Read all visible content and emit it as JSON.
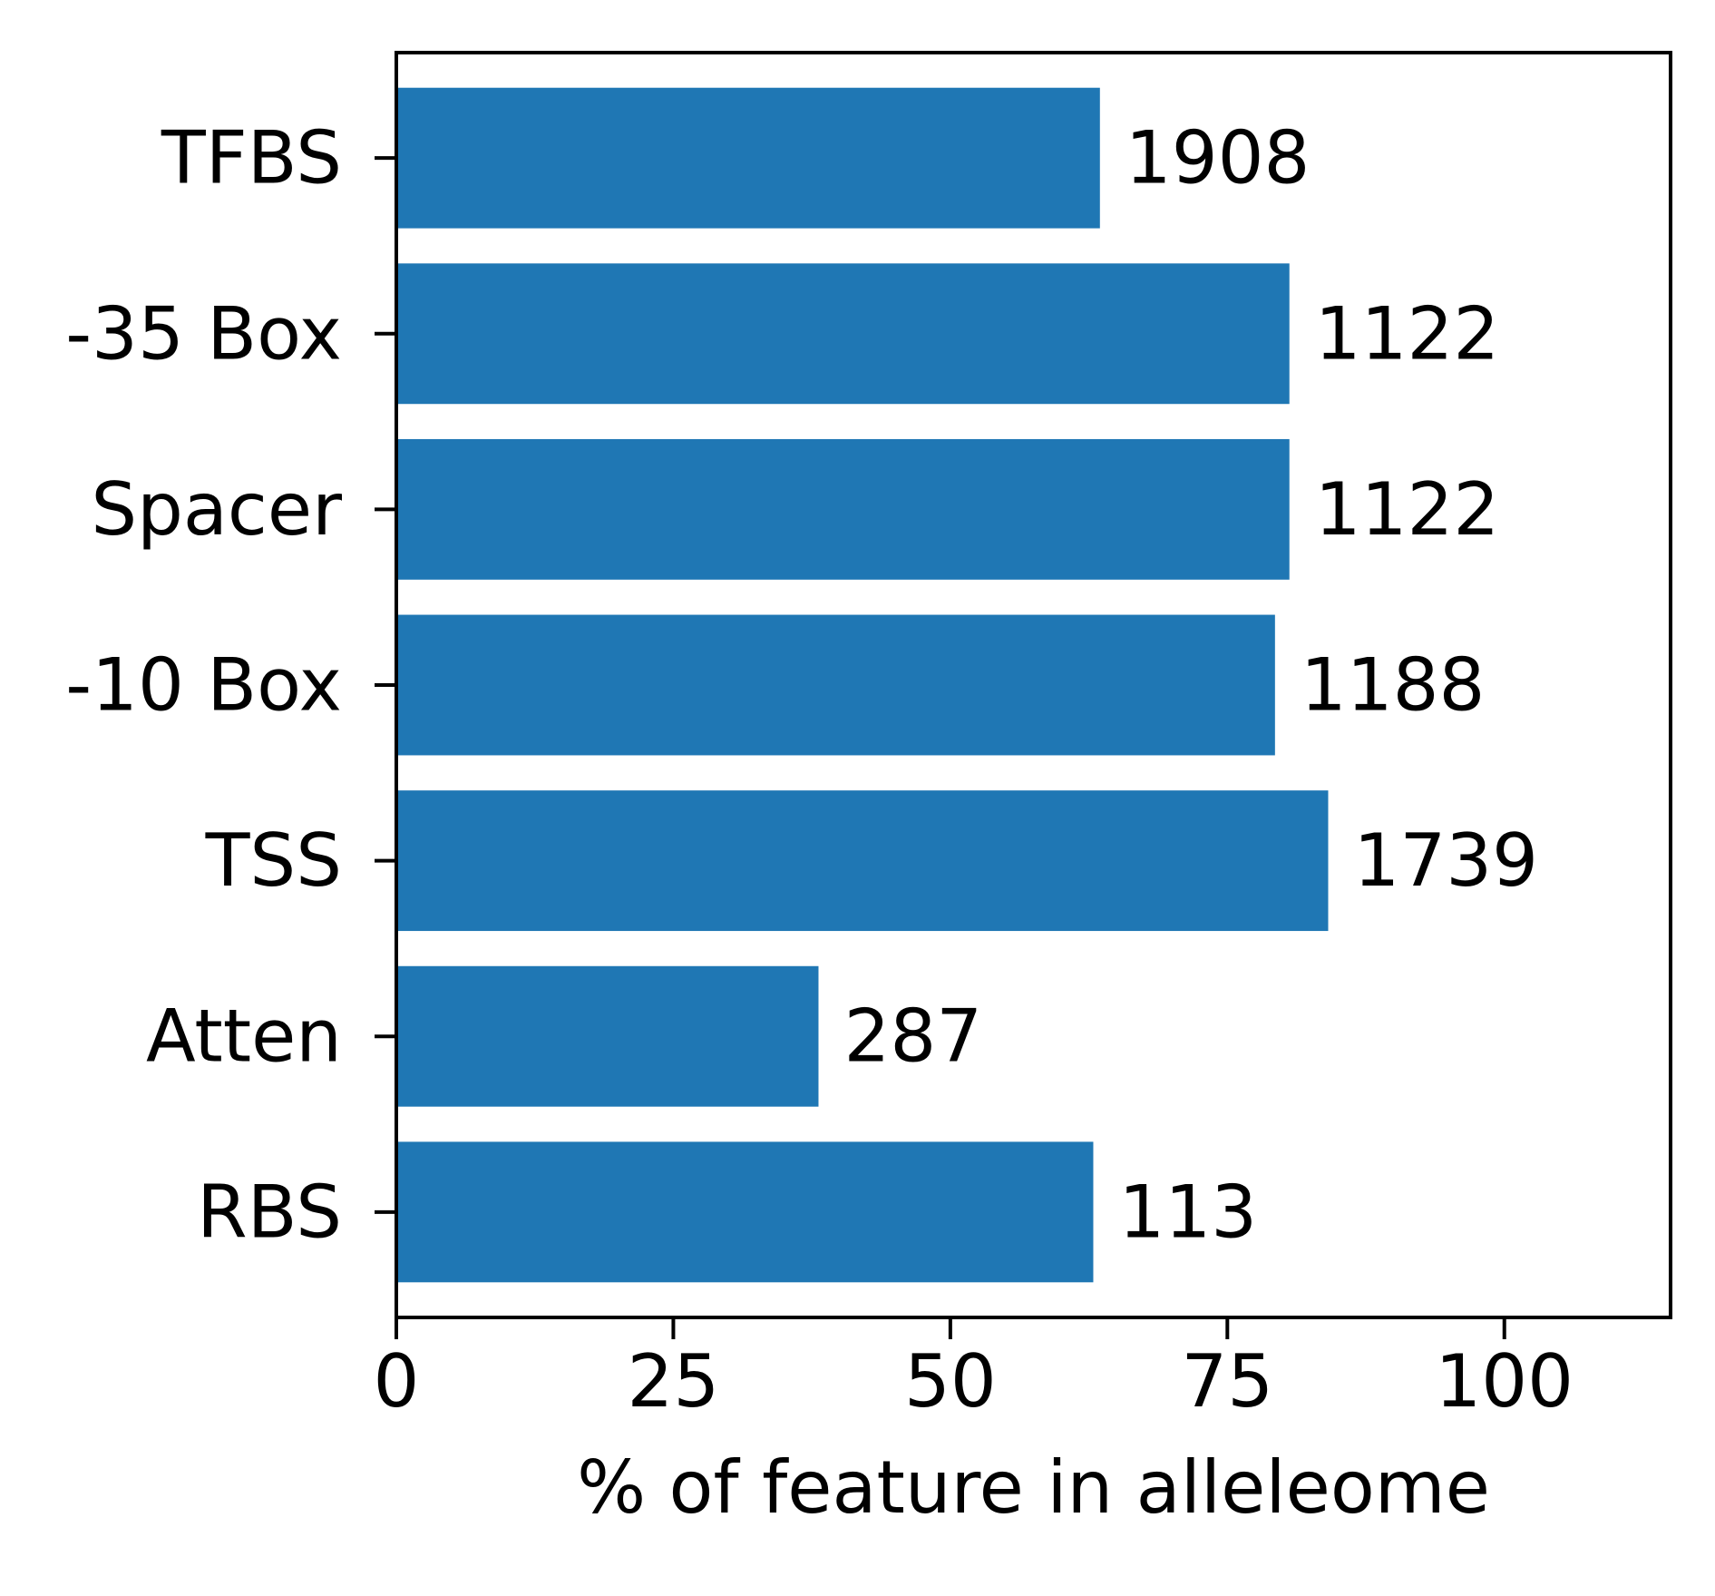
{
  "chart_data": {
    "type": "bar",
    "orientation": "horizontal",
    "categories": [
      "TFBS",
      "-35 Box",
      "Spacer",
      "-10 Box",
      "TSS",
      "Atten",
      "RBS"
    ],
    "values": [
      63.5,
      80.6,
      80.6,
      79.3,
      84.1,
      38.1,
      62.9
    ],
    "bar_labels": [
      "1908",
      "1122",
      "1122",
      "1188",
      "1739",
      "287",
      "113"
    ],
    "xlabel": "% of feature in alleleome",
    "ylabel": "",
    "title": "",
    "xlim": [
      0,
      115
    ],
    "xticks": [
      0,
      25,
      50,
      75,
      100
    ],
    "xtick_labels": [
      "0",
      "25",
      "50",
      "75",
      "100"
    ],
    "grid": false,
    "bar_color": "#1f77b4"
  }
}
